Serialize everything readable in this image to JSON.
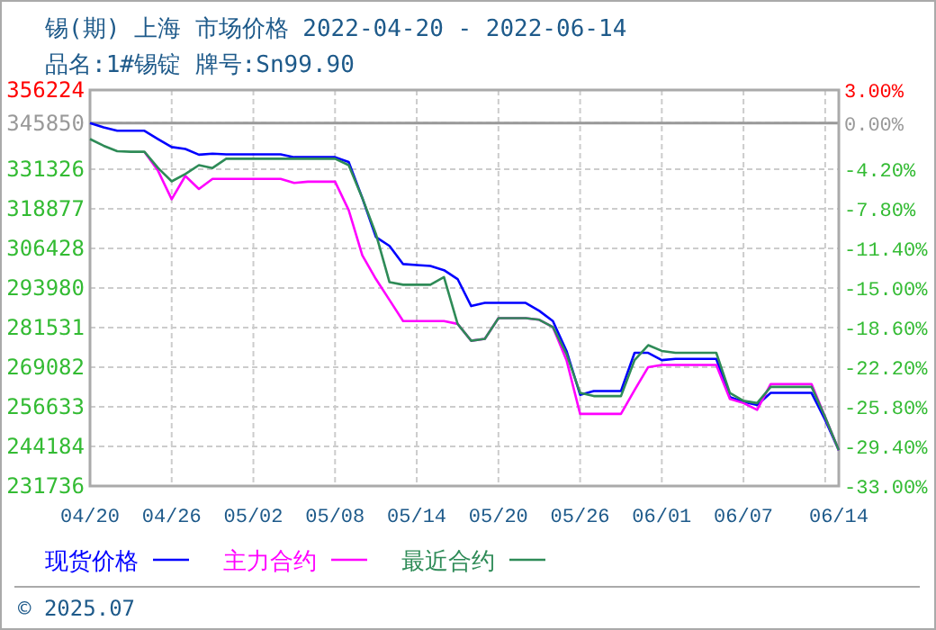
{
  "chart_data": {
    "type": "line",
    "title": "锡(期) 上海 市场价格 2022-04-20 - 2022-06-14",
    "subtitle": "品名:1#锡锭 牌号:Sn99.90",
    "annotations": [
      "© 2025.07"
    ],
    "x": [
      "2022-04-20",
      "2022-04-21",
      "2022-04-22",
      "2022-04-23",
      "2022-04-24",
      "2022-04-25",
      "2022-04-26",
      "2022-04-27",
      "2022-04-28",
      "2022-04-29",
      "2022-04-30",
      "2022-05-01",
      "2022-05-02",
      "2022-05-03",
      "2022-05-04",
      "2022-05-05",
      "2022-05-06",
      "2022-05-07",
      "2022-05-08",
      "2022-05-09",
      "2022-05-10",
      "2022-05-11",
      "2022-05-12",
      "2022-05-13",
      "2022-05-14",
      "2022-05-15",
      "2022-05-16",
      "2022-05-17",
      "2022-05-18",
      "2022-05-19",
      "2022-05-20",
      "2022-05-21",
      "2022-05-22",
      "2022-05-23",
      "2022-05-24",
      "2022-05-25",
      "2022-05-26",
      "2022-05-27",
      "2022-05-28",
      "2022-05-29",
      "2022-05-30",
      "2022-05-31",
      "2022-06-01",
      "2022-06-02",
      "2022-06-03",
      "2022-06-04",
      "2022-06-05",
      "2022-06-06",
      "2022-06-07",
      "2022-06-08",
      "2022-06-09",
      "2022-06-10",
      "2022-06-11",
      "2022-06-12",
      "2022-06-13",
      "2022-06-14"
    ],
    "series": [
      {
        "name": "现货价格",
        "color": "#0000ff",
        "values": [
          345850,
          344500,
          343400,
          343400,
          343400,
          340800,
          338300,
          337700,
          335900,
          336200,
          336000,
          336000,
          336000,
          336000,
          336000,
          335100,
          335100,
          335100,
          335100,
          333600,
          322300,
          310000,
          307200,
          301500,
          301200,
          300900,
          299600,
          296800,
          288300,
          289300,
          289300,
          289300,
          289300,
          286800,
          283600,
          274200,
          260400,
          261600,
          261600,
          261600,
          273600,
          273600,
          271300,
          271700,
          271700,
          271700,
          271700,
          259700,
          258200,
          257200,
          261000,
          261000,
          261000,
          261000,
          252500,
          243000
        ]
      },
      {
        "name": "主力合约",
        "color": "#ff00ff",
        "values": [
          null,
          null,
          null,
          null,
          336800,
          330800,
          321900,
          329200,
          325100,
          328300,
          328300,
          328300,
          328300,
          328300,
          328300,
          327000,
          327400,
          327400,
          327400,
          318500,
          304300,
          296800,
          290200,
          283600,
          283600,
          283600,
          283600,
          282700,
          277400,
          278000,
          284500,
          284500,
          284500,
          284000,
          281700,
          271300,
          254400,
          254400,
          254400,
          254400,
          261900,
          269100,
          269800,
          269800,
          269800,
          269800,
          269800,
          259100,
          257800,
          255700,
          263800,
          263800,
          263800,
          263800,
          253400,
          243000
        ]
      },
      {
        "name": "最近合约",
        "color": "#2e8b57",
        "values": [
          340800,
          338700,
          337000,
          336800,
          336800,
          331700,
          327500,
          329800,
          332600,
          331700,
          334600,
          334600,
          334600,
          334600,
          334600,
          334600,
          334600,
          334600,
          334600,
          332600,
          322300,
          311000,
          295800,
          295000,
          295000,
          295000,
          297400,
          282700,
          277400,
          278000,
          284500,
          284500,
          284500,
          284000,
          281700,
          273200,
          261000,
          260000,
          260000,
          260000,
          271300,
          276000,
          274200,
          273600,
          273600,
          273600,
          273600,
          261000,
          258500,
          257800,
          262900,
          262900,
          262900,
          262900,
          253400,
          243000
        ]
      }
    ],
    "xlim": [
      "2022-04-20",
      "2022-06-14"
    ],
    "xticks": [
      {
        "value": "2022-04-20",
        "label": "04/20"
      },
      {
        "value": "2022-04-26",
        "label": "04/26"
      },
      {
        "value": "2022-05-02",
        "label": "05/02"
      },
      {
        "value": "2022-05-08",
        "label": "05/08"
      },
      {
        "value": "2022-05-14",
        "label": "05/14"
      },
      {
        "value": "2022-05-20",
        "label": "05/20"
      },
      {
        "value": "2022-05-26",
        "label": "05/26"
      },
      {
        "value": "2022-06-01",
        "label": "06/01"
      },
      {
        "value": "2022-06-07",
        "label": "06/07"
      },
      {
        "value": "2022-06-13",
        "label": null
      },
      {
        "value": "2022-06-14",
        "label": "06/14"
      }
    ],
    "ylim": [
      231736,
      356224
    ],
    "yticks": [
      231736,
      244184,
      256633,
      269082,
      281531,
      293980,
      306428,
      318877,
      331326,
      345850,
      356224
    ],
    "y2lim": [
      -33,
      3
    ],
    "y2ticks": [
      {
        "value": -33,
        "label": "-33.00%"
      },
      {
        "value": -29.4,
        "label": "-29.40%"
      },
      {
        "value": -25.8,
        "label": "-25.80%"
      },
      {
        "value": -22.2,
        "label": "-22.20%"
      },
      {
        "value": -18.6,
        "label": "-18.60%"
      },
      {
        "value": -15,
        "label": "-15.00%"
      },
      {
        "value": -11.4,
        "label": "-11.40%"
      },
      {
        "value": -7.8,
        "label": "-7.80%"
      },
      {
        "value": -4.2,
        "label": "-4.20%"
      },
      {
        "value": 0,
        "label": "0.00%"
      },
      {
        "value": 3,
        "label": "3.00%"
      }
    ],
    "ref_lines": [
      {
        "axis": "y2",
        "value": 0,
        "color": "#999999"
      }
    ],
    "grid": true,
    "legend": "bottom",
    "marker": "none",
    "line_style": "solid"
  }
}
